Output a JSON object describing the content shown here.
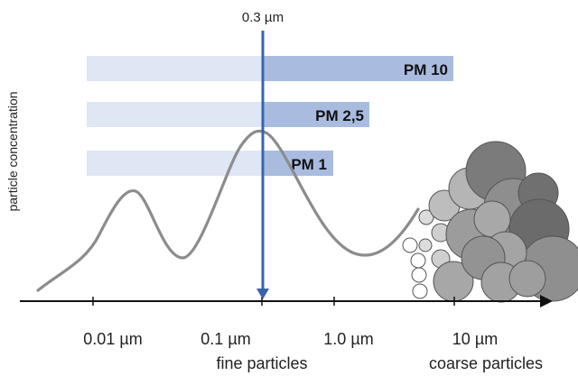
{
  "marker": {
    "label": "0.3 µm",
    "color": "#3a64ad"
  },
  "y_axis_label": "particle concentration",
  "x_ticks": [
    {
      "label": "0.01 µm"
    },
    {
      "label": "0.1 µm"
    },
    {
      "label": "1.0 µm"
    },
    {
      "label": "10 µm"
    }
  ],
  "region_labels": {
    "fine": "fine particles",
    "coarse": "coarse particles"
  },
  "bars": [
    {
      "label": "PM 10"
    },
    {
      "label": "PM 2,5"
    },
    {
      "label": "PM 1"
    }
  ],
  "colors": {
    "bar_light": "#dfe6f4",
    "bar_dark": "#a9bce0",
    "curve": "#8c8c8c",
    "axis": "#111111"
  },
  "icons": {
    "particle_cluster": "particle-cluster-icon"
  }
}
